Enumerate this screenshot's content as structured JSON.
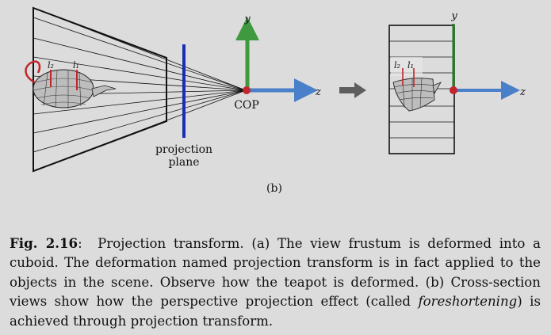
{
  "figure": {
    "left_panel": {
      "axis_y": "y",
      "axis_z": "z",
      "cop_label": "COP",
      "plane_label_line1": "projection",
      "plane_label_line2": "plane",
      "height_marks": [
        "l₂",
        "l₁"
      ]
    },
    "right_panel": {
      "axis_y": "y",
      "axis_z": "z",
      "height_marks": [
        "l₂",
        "l₁"
      ]
    },
    "panel_label": "(b)",
    "colors": {
      "y_axis": "#3f9a3f",
      "z_axis": "#4a7fc9",
      "origin": "#c0262b",
      "projection_plane": "#1a2fb0",
      "arrow": "#5e5e5e",
      "teapot_handle": "#c0262b"
    }
  },
  "caption": {
    "prefix": "Fig. 2.16",
    "colon": ":",
    "text_before": "Projection transform. (a) The view frustum is deformed into a cuboid. The deformation named projection transform is in fact applied to the objects in the scene. Observe how the teapot is deformed. (b) Cross-section views show how the perspective projection effect (called ",
    "emphasis": "foreshortening",
    "text_after": ") is achieved through projection transform."
  }
}
